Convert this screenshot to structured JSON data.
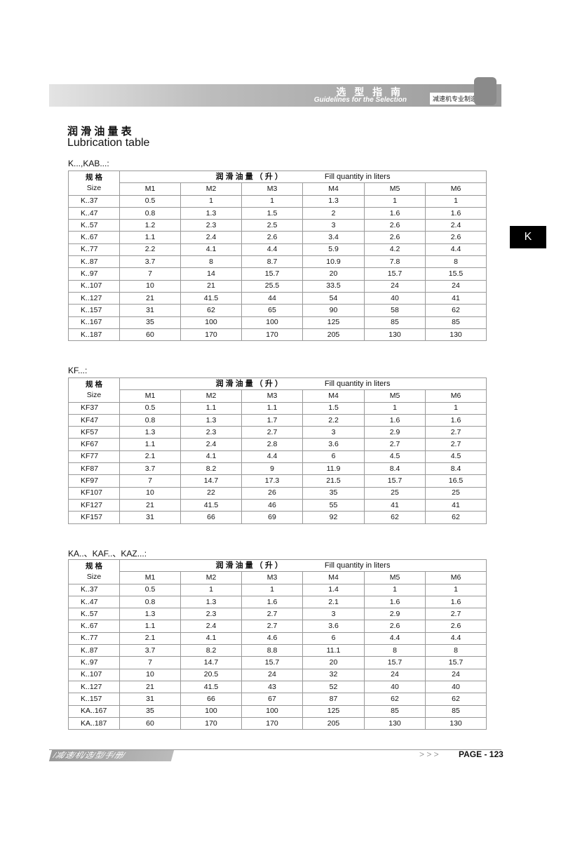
{
  "header": {
    "title_cn": "选 型 指 南",
    "title_en": "Guidelines for the Selection",
    "tag": "减速机专业制造商"
  },
  "section": {
    "title_cn": "润 滑 油 量 表",
    "title_en": "Lubrication table"
  },
  "side_tab": "K",
  "tables": [
    {
      "caption": "K...,KAB...:",
      "head": {
        "size_cn": "规 格",
        "size_en": "Size",
        "qty_cn": "润 滑 油 量 （ 升 ）",
        "qty_en": "Fill quantity in liters",
        "columns": [
          "M1",
          "M2",
          "M3",
          "M4",
          "M5",
          "M6"
        ]
      },
      "rows": [
        [
          "K..37",
          0.5,
          1,
          1,
          1.3,
          1,
          1
        ],
        [
          "K..47",
          0.8,
          1.3,
          1.5,
          2,
          1.6,
          1.6
        ],
        [
          "K..57",
          1.2,
          2.3,
          2.5,
          3,
          2.6,
          2.4
        ],
        [
          "K..67",
          1.1,
          2.4,
          2.6,
          3.4,
          2.6,
          2.6
        ],
        [
          "K..77",
          2.2,
          4.1,
          4.4,
          5.9,
          4.2,
          4.4
        ],
        [
          "K..87",
          3.7,
          8,
          8.7,
          10.9,
          7.8,
          8
        ],
        [
          "K..97",
          7,
          14,
          15.7,
          20,
          15.7,
          15.5
        ],
        [
          "K..107",
          10,
          21,
          25.5,
          33.5,
          24,
          24
        ],
        [
          "K..127",
          21,
          41.5,
          44,
          54,
          40,
          41
        ],
        [
          "K..157",
          31,
          62,
          65,
          90,
          58,
          62
        ],
        [
          "K..167",
          35,
          100,
          100,
          125,
          85,
          85
        ],
        [
          "K..187",
          60,
          170,
          170,
          205,
          130,
          130
        ]
      ]
    },
    {
      "caption": "KF...:",
      "head": {
        "size_cn": "规 格",
        "size_en": "Size",
        "qty_cn": "润 滑 油 量 （ 升 ）",
        "qty_en": "Fill quantity in liters",
        "columns": [
          "M1",
          "M2",
          "M3",
          "M4",
          "M5",
          "M6"
        ]
      },
      "rows": [
        [
          "KF37",
          0.5,
          1.1,
          1.1,
          1.5,
          1,
          1
        ],
        [
          "KF47",
          0.8,
          1.3,
          1.7,
          2.2,
          1.6,
          1.6
        ],
        [
          "KF57",
          1.3,
          2.3,
          2.7,
          3,
          2.9,
          2.7
        ],
        [
          "KF67",
          1.1,
          2.4,
          2.8,
          3.6,
          2.7,
          2.7
        ],
        [
          "KF77",
          2.1,
          4.1,
          4.4,
          6,
          4.5,
          4.5
        ],
        [
          "KF87",
          3.7,
          8.2,
          9,
          11.9,
          8.4,
          8.4
        ],
        [
          "KF97",
          7,
          14.7,
          17.3,
          21.5,
          15.7,
          16.5
        ],
        [
          "KF107",
          10,
          22,
          26,
          35,
          25,
          25
        ],
        [
          "KF127",
          21,
          41.5,
          46,
          55,
          41,
          41
        ],
        [
          "KF157",
          31,
          66,
          69,
          92,
          62,
          62
        ]
      ]
    },
    {
      "caption": "KA..、KAF..、KAZ...:",
      "head": {
        "size_cn": "规 格",
        "size_en": "Size",
        "qty_cn": "润 滑 油 量 （ 升 ）",
        "qty_en": "Fill quantity in liters",
        "columns": [
          "M1",
          "M2",
          "M3",
          "M4",
          "M5",
          "M6"
        ]
      },
      "rows": [
        [
          "K..37",
          0.5,
          1,
          1,
          1.4,
          1,
          1
        ],
        [
          "K..47",
          0.8,
          1.3,
          1.6,
          2.1,
          1.6,
          1.6
        ],
        [
          "K..57",
          1.3,
          2.3,
          2.7,
          3,
          2.9,
          2.7
        ],
        [
          "K..67",
          1.1,
          2.4,
          2.7,
          3.6,
          2.6,
          2.6
        ],
        [
          "K..77",
          2.1,
          4.1,
          4.6,
          6,
          4.4,
          4.4
        ],
        [
          "K..87",
          3.7,
          8.2,
          8.8,
          11.1,
          8,
          8
        ],
        [
          "K..97",
          7,
          14.7,
          15.7,
          20,
          15.7,
          15.7
        ],
        [
          "K..107",
          10,
          20.5,
          24,
          32,
          24,
          24
        ],
        [
          "K..127",
          21,
          41.5,
          43,
          52,
          40,
          40
        ],
        [
          "K..157",
          31,
          66,
          67,
          87,
          62,
          62
        ],
        [
          "KA..167",
          35,
          100,
          100,
          125,
          85,
          85
        ],
        [
          "KA..187",
          60,
          170,
          170,
          205,
          130,
          130
        ]
      ]
    }
  ],
  "footer": {
    "left": "/减/速/机/选/型/手/册/",
    "arrows": "> > >",
    "page": "PAGE - 123"
  }
}
